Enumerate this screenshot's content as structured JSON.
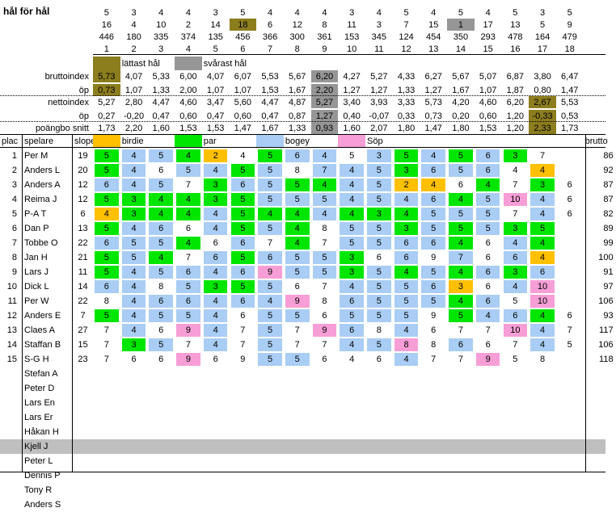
{
  "title": "hål för hål",
  "colors": {
    "olive": "#8c7d1e",
    "gray": "#969696",
    "green": "#00e600",
    "blue": "#a9cdf4",
    "orange": "#ffc000",
    "pink": "#f79ed6",
    "white": "#ffffff",
    "kjell_band": "#bfbfbf"
  },
  "header": {
    "par": [
      "5",
      "3",
      "4",
      "4",
      "3",
      "5",
      "4",
      "4",
      "4",
      "3",
      "4",
      "5",
      "4",
      "5",
      "4",
      "5",
      "3",
      "5"
    ],
    "index": [
      "16",
      "4",
      "10",
      "2",
      "14",
      "18",
      "6",
      "12",
      "8",
      "11",
      "3",
      "7",
      "15",
      "1",
      "17",
      "13",
      "5",
      "9"
    ],
    "length": [
      "446",
      "180",
      "335",
      "374",
      "135",
      "456",
      "366",
      "300",
      "361",
      "153",
      "345",
      "124",
      "454",
      "350",
      "293",
      "478",
      "164",
      "479"
    ],
    "hole": [
      "1",
      "2",
      "3",
      "4",
      "5",
      "6",
      "7",
      "8",
      "9",
      "10",
      "11",
      "12",
      "13",
      "14",
      "15",
      "16",
      "17",
      "18"
    ],
    "easiest_label": "lättast hål",
    "hardest_label": "svårast hål"
  },
  "stats": [
    {
      "label": "bruttoindex",
      "values": [
        "5,73",
        "4,07",
        "5,33",
        "6,00",
        "4,07",
        "6,07",
        "5,53",
        "5,67",
        "6,20",
        "4,27",
        "5,27",
        "4,33",
        "6,27",
        "5,67",
        "5,07",
        "6,87",
        "3,80",
        "6,47"
      ],
      "hl": [
        0,
        8
      ]
    },
    {
      "label": "öp",
      "values": [
        "0,73",
        "1,07",
        "1,33",
        "2,00",
        "1,07",
        "1,07",
        "1,53",
        "1,67",
        "2,20",
        "1,27",
        "1,27",
        "1,33",
        "1,27",
        "1,67",
        "1,07",
        "1,87",
        "0,80",
        "1,47"
      ],
      "hl": [
        0,
        8
      ]
    },
    {
      "label": "nettoindex",
      "values": [
        "5,27",
        "2,80",
        "4,47",
        "4,60",
        "3,47",
        "5,60",
        "4,47",
        "4,87",
        "5,27",
        "3,40",
        "3,93",
        "3,33",
        "5,73",
        "4,20",
        "4,60",
        "6,20",
        "2,67",
        "5,53"
      ],
      "hl": [
        16,
        8
      ]
    },
    {
      "label": "öp",
      "values": [
        "0,27",
        "-0,20",
        "0,47",
        "0,60",
        "0,47",
        "0,60",
        "0,47",
        "0,87",
        "1,27",
        "0,40",
        "-0,07",
        "0,33",
        "0,73",
        "0,20",
        "0,60",
        "1,20",
        "-0,33",
        "0,53"
      ],
      "hl": [
        16,
        8
      ]
    },
    {
      "label": "poängbo snitt",
      "values": [
        "1,73",
        "2,20",
        "1,60",
        "1,53",
        "1,53",
        "1,47",
        "1,67",
        "1,33",
        "0,93",
        "1,60",
        "2,07",
        "1,80",
        "1,47",
        "1,80",
        "1,53",
        "1,20",
        "2,33",
        "1,73"
      ],
      "hl": [
        16,
        8
      ]
    }
  ],
  "legend": {
    "plac": "plac",
    "spelare": "spelare",
    "slope": "slope",
    "birdie": "birdie",
    "par": "par",
    "bogey": "bogey",
    "sop": "Söp",
    "brutto": "brutto"
  },
  "players": [
    {
      "plac": "1",
      "name": "Per M",
      "slope": "19",
      "scores": [
        "5",
        "4",
        "5",
        "4",
        "2",
        "4",
        "5",
        "6",
        "4",
        "5",
        "3",
        "5",
        "4",
        "5",
        "6",
        "3",
        "7"
      ],
      "s18": "",
      "brutto": "86",
      "cols": [
        "G",
        "B",
        "B",
        "G",
        "O",
        "W",
        "G",
        "B",
        "B",
        "W",
        "B",
        "G",
        "B",
        "G",
        "B",
        "G",
        "W"
      ]
    },
    {
      "plac": "2",
      "name": "Anders L",
      "slope": "20",
      "scores": [
        "5",
        "4",
        "6",
        "5",
        "4",
        "5",
        "5",
        "8",
        "7",
        "4",
        "5",
        "3",
        "6",
        "5",
        "6",
        "4",
        "4"
      ],
      "s18": "",
      "brutto": "92",
      "cols": [
        "G",
        "B",
        "W",
        "B",
        "B",
        "G",
        "B",
        "W",
        "B",
        "B",
        "B",
        "G",
        "B",
        "B",
        "B",
        "W",
        "O"
      ]
    },
    {
      "plac": "3",
      "name": "Anders A",
      "slope": "12",
      "scores": [
        "6",
        "4",
        "5",
        "7",
        "3",
        "6",
        "5",
        "5",
        "4",
        "4",
        "5",
        "2",
        "4",
        "6",
        "4",
        "7",
        "3"
      ],
      "s18": "6",
      "brutto": "87",
      "cols": [
        "B",
        "B",
        "B",
        "W",
        "G",
        "B",
        "B",
        "G",
        "G",
        "B",
        "B",
        "O",
        "O",
        "W",
        "G",
        "W",
        "G"
      ]
    },
    {
      "plac": "4",
      "name": "Reima J",
      "slope": "12",
      "scores": [
        "5",
        "3",
        "4",
        "4",
        "3",
        "5",
        "5",
        "5",
        "5",
        "4",
        "5",
        "4",
        "6",
        "4",
        "5",
        "10",
        "4"
      ],
      "s18": "6",
      "brutto": "87",
      "cols": [
        "G",
        "G",
        "G",
        "G",
        "G",
        "G",
        "B",
        "B",
        "B",
        "B",
        "B",
        "B",
        "B",
        "G",
        "B",
        "P",
        "B"
      ]
    },
    {
      "plac": "5",
      "name": "P-A T",
      "slope": "6",
      "scores": [
        "4",
        "3",
        "4",
        "4",
        "4",
        "5",
        "4",
        "4",
        "4",
        "4",
        "3",
        "4",
        "5",
        "5",
        "5",
        "7",
        "4"
      ],
      "s18": "6",
      "brutto": "82",
      "cols": [
        "O",
        "G",
        "G",
        "G",
        "B",
        "G",
        "G",
        "G",
        "B",
        "G",
        "G",
        "G",
        "B",
        "B",
        "B",
        "W",
        "B"
      ]
    },
    {
      "plac": "6",
      "name": "Dan P",
      "slope": "13",
      "scores": [
        "5",
        "4",
        "6",
        "6",
        "4",
        "5",
        "5",
        "4",
        "8",
        "5",
        "5",
        "3",
        "5",
        "5",
        "5",
        "3",
        "5"
      ],
      "s18": "",
      "brutto": "89",
      "cols": [
        "G",
        "B",
        "B",
        "W",
        "B",
        "G",
        "B",
        "G",
        "W",
        "B",
        "B",
        "G",
        "B",
        "G",
        "B",
        "G",
        "G"
      ]
    },
    {
      "plac": "7",
      "name": "Tobbe O",
      "slope": "22",
      "scores": [
        "6",
        "5",
        "5",
        "4",
        "6",
        "6",
        "7",
        "4",
        "7",
        "5",
        "5",
        "6",
        "6",
        "4",
        "6",
        "4",
        "4"
      ],
      "s18": "",
      "brutto": "99",
      "cols": [
        "B",
        "B",
        "B",
        "G",
        "W",
        "B",
        "W",
        "G",
        "W",
        "B",
        "B",
        "B",
        "B",
        "G",
        "W",
        "B",
        "G"
      ]
    },
    {
      "plac": "8",
      "name": "Jan H",
      "slope": "21",
      "scores": [
        "5",
        "5",
        "4",
        "7",
        "6",
        "5",
        "6",
        "5",
        "5",
        "3",
        "6",
        "6",
        "9",
        "7",
        "6",
        "6",
        "4"
      ],
      "s18": "",
      "brutto": "100",
      "cols": [
        "G",
        "B",
        "G",
        "W",
        "B",
        "G",
        "B",
        "B",
        "B",
        "G",
        "W",
        "B",
        "W",
        "B",
        "W",
        "B",
        "O"
      ]
    },
    {
      "plac": "9",
      "name": "Lars J",
      "slope": "11",
      "scores": [
        "5",
        "4",
        "5",
        "6",
        "4",
        "6",
        "9",
        "5",
        "5",
        "3",
        "5",
        "4",
        "5",
        "4",
        "6",
        "3",
        "6"
      ],
      "s18": "",
      "brutto": "91",
      "cols": [
        "G",
        "B",
        "B",
        "B",
        "B",
        "B",
        "P",
        "B",
        "B",
        "G",
        "B",
        "G",
        "B",
        "G",
        "B",
        "G",
        "B"
      ]
    },
    {
      "plac": "10",
      "name": "Dick L",
      "slope": "14",
      "scores": [
        "6",
        "4",
        "8",
        "5",
        "3",
        "5",
        "5",
        "6",
        "7",
        "4",
        "5",
        "5",
        "6",
        "3",
        "6",
        "4",
        "10"
      ],
      "s18": "",
      "brutto": "97",
      "cols": [
        "B",
        "B",
        "W",
        "B",
        "G",
        "G",
        "B",
        "W",
        "W",
        "B",
        "B",
        "B",
        "B",
        "O",
        "W",
        "B",
        "P"
      ]
    },
    {
      "plac": "11",
      "name": "Per W",
      "slope": "22",
      "scores": [
        "8",
        "4",
        "6",
        "6",
        "4",
        "6",
        "4",
        "9",
        "8",
        "6",
        "5",
        "5",
        "5",
        "4",
        "6",
        "5",
        "10"
      ],
      "s18": "",
      "brutto": "106",
      "cols": [
        "W",
        "B",
        "B",
        "B",
        "B",
        "B",
        "B",
        "P",
        "W",
        "B",
        "B",
        "B",
        "B",
        "G",
        "B",
        "W",
        "P"
      ]
    },
    {
      "plac": "12",
      "name": "Anders E",
      "slope": "7",
      "scores": [
        "5",
        "4",
        "5",
        "5",
        "4",
        "6",
        "5",
        "5",
        "6",
        "5",
        "5",
        "5",
        "9",
        "5",
        "4",
        "6",
        "4"
      ],
      "s18": "6",
      "brutto": "93",
      "cols": [
        "G",
        "B",
        "B",
        "B",
        "B",
        "W",
        "B",
        "B",
        "W",
        "B",
        "B",
        "B",
        "W",
        "G",
        "B",
        "B",
        "G"
      ]
    },
    {
      "plac": "13",
      "name": "Claes A",
      "slope": "27",
      "scores": [
        "7",
        "4",
        "6",
        "9",
        "4",
        "7",
        "5",
        "7",
        "9",
        "6",
        "8",
        "4",
        "6",
        "7",
        "7",
        "10",
        "4"
      ],
      "s18": "7",
      "brutto": "117",
      "cols": [
        "W",
        "B",
        "W",
        "P",
        "B",
        "W",
        "B",
        "W",
        "P",
        "B",
        "W",
        "B",
        "W",
        "W",
        "W",
        "P",
        "B"
      ]
    },
    {
      "plac": "14",
      "name": "Staffan B",
      "slope": "15",
      "scores": [
        "7",
        "3",
        "5",
        "7",
        "4",
        "7",
        "5",
        "7",
        "7",
        "4",
        "5",
        "8",
        "8",
        "6",
        "6",
        "7",
        "4"
      ],
      "s18": "5",
      "brutto": "106",
      "cols": [
        "W",
        "G",
        "B",
        "W",
        "B",
        "W",
        "B",
        "W",
        "W",
        "B",
        "B",
        "P",
        "W",
        "B",
        "W",
        "W",
        "B"
      ]
    },
    {
      "plac": "15",
      "name": "S-G H",
      "slope": "23",
      "scores": [
        "7",
        "6",
        "6",
        "9",
        "6",
        "9",
        "5",
        "5",
        "6",
        "4",
        "6",
        "4",
        "7",
        "7",
        "9",
        "5",
        "8"
      ],
      "s18": "",
      "brutto": "118",
      "cols": [
        "W",
        "W",
        "W",
        "P",
        "W",
        "W",
        "B",
        "B",
        "W",
        "W",
        "W",
        "B",
        "W",
        "W",
        "P",
        "W",
        "W"
      ]
    }
  ],
  "extra_players": [
    "Stefan A",
    "Peter D",
    "Lars En",
    "Lars Er",
    "Håkan H",
    "Kjell J",
    "Peter L",
    "Dennis P",
    "Tony R",
    "Anders S"
  ]
}
